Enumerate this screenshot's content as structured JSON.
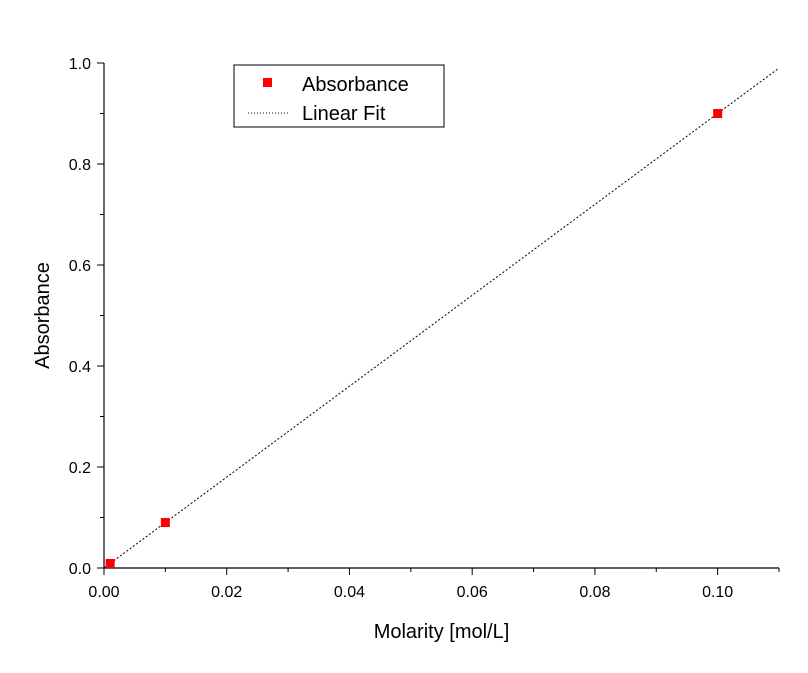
{
  "chart_data": {
    "type": "scatter",
    "title": "",
    "xlabel": "Molarity [mol/L]",
    "ylabel": "Absorbance",
    "xlim": [
      0.0,
      0.11
    ],
    "ylim": [
      0.0,
      1.0
    ],
    "x_ticks": [
      "0.00",
      "0.02",
      "0.04",
      "0.06",
      "0.08",
      "0.10"
    ],
    "y_ticks": [
      "0.0",
      "0.2",
      "0.4",
      "0.6",
      "0.8",
      "1.0"
    ],
    "grid": false,
    "legend_position": "top-left",
    "series": [
      {
        "name": "Absorbance",
        "kind": "scatter",
        "marker": "square",
        "color": "#ff0000",
        "x": [
          0.001,
          0.01,
          0.1
        ],
        "y": [
          0.009,
          0.09,
          0.9
        ]
      },
      {
        "name": "Linear Fit",
        "kind": "line",
        "style": "dotted",
        "color": "#000000",
        "slope": 9.0,
        "intercept": 0.0,
        "x_range": [
          0.0,
          0.11
        ]
      }
    ]
  }
}
